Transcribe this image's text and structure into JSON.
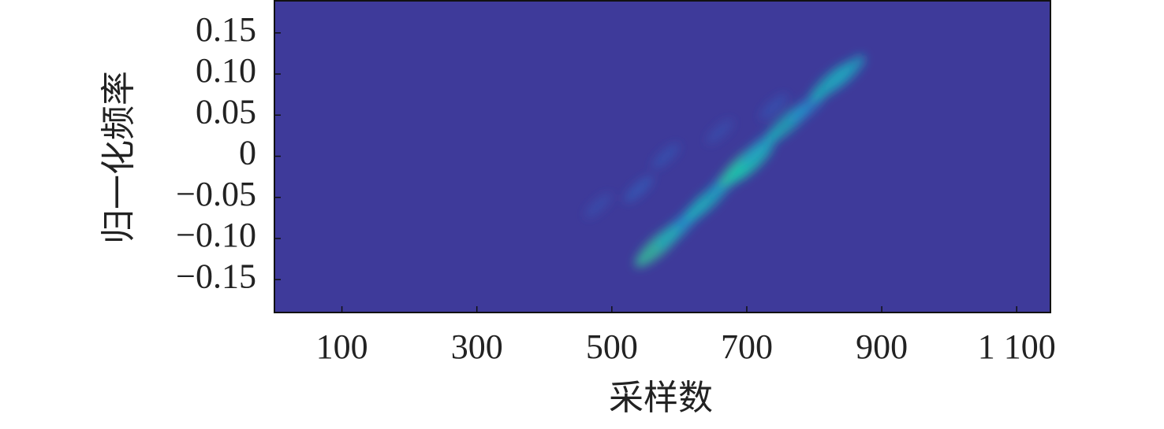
{
  "chart_data": {
    "type": "heatmap",
    "x_label": "采样数",
    "y_label": "归一化频率",
    "background": "#3e3a9a",
    "xlim": [
      0,
      1150
    ],
    "ylim": [
      -0.19,
      0.19
    ],
    "xticks": [
      100,
      300,
      500,
      700,
      900,
      {
        "value": 1100,
        "label": "1 100"
      }
    ],
    "yticks": [
      {
        "value": -0.15,
        "label": "−0.15"
      },
      {
        "value": -0.1,
        "label": "−0.10"
      },
      {
        "value": -0.05,
        "label": "−0.05"
      },
      0,
      0.05,
      {
        "value": 0.1,
        "label": "0.10"
      },
      0.15
    ],
    "x": [
      570,
      595,
      620,
      640,
      670,
      695,
      705,
      720,
      760,
      790,
      825,
      845,
      540,
      480,
      580,
      660,
      740
    ],
    "y": [
      -0.108,
      -0.09,
      -0.07,
      -0.055,
      -0.03,
      -0.01,
      -0.008,
      0.01,
      0.04,
      0.06,
      0.09,
      0.1,
      -0.04,
      -0.06,
      0.0,
      0.03,
      0.06
    ],
    "values": [
      0.55,
      0.4,
      0.3,
      0.45,
      0.35,
      0.55,
      0.5,
      0.35,
      0.45,
      0.3,
      0.45,
      0.4,
      0.15,
      0.1,
      0.12,
      0.1,
      0.12
    ]
  }
}
